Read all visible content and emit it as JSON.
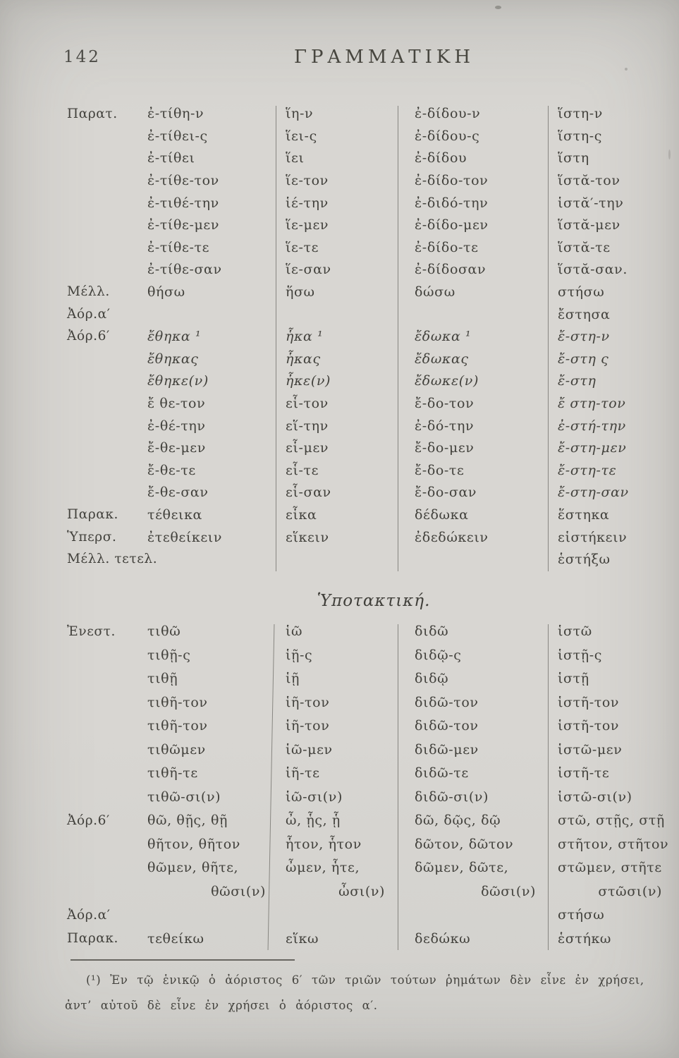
{
  "page": {
    "number": "142",
    "title": "ΓΡΑΜΜΑΤΙΚΗ"
  },
  "section_heading": "Ὑποτακτική.",
  "indicative_table": {
    "rows": [
      {
        "label": "Παρατ.",
        "cells": [
          "ἐ-τίθη-ν",
          "ἵη-ν",
          "ἐ-δίδου-ν",
          "ἵστη-ν"
        ],
        "italic": "none"
      },
      {
        "label": "",
        "cells": [
          "ἐ-τίθει-ς",
          "ἵει-ς",
          "ἐ-δίδου-ς",
          "ἵστη-ς"
        ],
        "italic": "none"
      },
      {
        "label": "",
        "cells": [
          "ἐ-τίθει",
          "ἵει",
          "ἐ-δίδου",
          "ἵστη"
        ],
        "italic": "none"
      },
      {
        "label": "",
        "cells": [
          "ἐ-τίθε-τον",
          "ἵε-τον",
          "ἐ-δίδο-τον",
          "ἵστᾰ-τον"
        ],
        "italic": "none"
      },
      {
        "label": "",
        "cells": [
          "ἐ-τιθέ-την",
          "ἱέ-την",
          "ἐ-διδό-την",
          "ἱστᾰ′-την"
        ],
        "italic": "none"
      },
      {
        "label": "",
        "cells": [
          "ἐ-τίθε-μεν",
          "ἵε-μεν",
          "ἐ-δίδο-μεν",
          "ἵστᾰ-μεν"
        ],
        "italic": "none"
      },
      {
        "label": "",
        "cells": [
          "ἐ-τίθε-τε",
          "ἵε-τε",
          "ἐ-δίδο-τε",
          "ἵστᾰ-τε"
        ],
        "italic": "none"
      },
      {
        "label": "",
        "cells": [
          "ἐ-τίθε-σαν",
          "ἵε-σαν",
          "ἐ-δίδοσαν",
          "ἵστᾰ-σαν."
        ],
        "italic": "none"
      },
      {
        "label": "Μέλλ.",
        "cells": [
          "θήσω",
          "ἥσω",
          "δώσω",
          "στήσω"
        ],
        "italic": "none"
      },
      {
        "label": "Ἀόρ.α′",
        "cells": [
          "",
          "",
          "",
          "ἔστησα"
        ],
        "italic": "none"
      },
      {
        "label": "Ἀόρ.6′",
        "cells": [
          "ἔθηκα ¹",
          "ἧκα ¹",
          "ἔδωκα ¹",
          "ἔ-στη-ν"
        ],
        "italic": "all"
      },
      {
        "label": "",
        "cells": [
          "ἔθηκας",
          "ἧκας",
          "ἔδωκας",
          "ἔ-στη ς"
        ],
        "italic": "all"
      },
      {
        "label": "",
        "cells": [
          "ἔθηκε(ν)",
          "ἧκε(ν)",
          "ἔδωκε(ν)",
          "ἔ-στη"
        ],
        "italic": "all"
      },
      {
        "label": "",
        "cells": [
          "ἔ θε-τον",
          "εἷ-τον",
          "ἔ-δο-τον",
          "ἔ στη-τον"
        ],
        "italic": "last"
      },
      {
        "label": "",
        "cells": [
          "ἐ-θέ-την",
          "εἵ-την",
          "ἐ-δό-την",
          "ἐ-στή-την"
        ],
        "italic": "last"
      },
      {
        "label": "",
        "cells": [
          "ἔ-θε-μεν",
          "εἷ-μεν",
          "ἔ-δο-μεν",
          "ἔ-στη-μεν"
        ],
        "italic": "last"
      },
      {
        "label": "",
        "cells": [
          "ἔ-θε-τε",
          "εἷ-τε",
          "ἔ-δο-τε",
          "ἔ-στη-τε"
        ],
        "italic": "last"
      },
      {
        "label": "",
        "cells": [
          "ἔ-θε-σαν",
          "εἷ-σαν",
          "ἔ-δο-σαν",
          "ἔ-στη-σαν"
        ],
        "italic": "last"
      },
      {
        "label": "Παρακ.",
        "cells": [
          "τέθεικα",
          "εἷκα",
          "δέδωκα",
          "ἕστηκα"
        ],
        "italic": "none"
      },
      {
        "label": "Ὑπερσ.",
        "cells": [
          "ἐτεθείκειν",
          "εἵκειν",
          "ἐδεδώκειν",
          "εἱστήκειν"
        ],
        "italic": "none"
      },
      {
        "label": "Μέλλ. τετελ.",
        "cells": [
          "",
          "",
          "",
          "ἑστήξω"
        ],
        "italic": "none"
      }
    ]
  },
  "subjunctive_table": {
    "rows": [
      {
        "label": "Ἐνεστ.",
        "cells": [
          "τιθῶ",
          "ἱῶ",
          "διδῶ",
          "ἱστῶ"
        ],
        "italic": "none"
      },
      {
        "label": "",
        "cells": [
          "τιθῇ-ς",
          "ἱῇ-ς",
          "διδῷ-ς",
          "ἱστῇ-ς"
        ],
        "italic": "none"
      },
      {
        "label": "",
        "cells": [
          "τιθῇ",
          "ἱῇ",
          "διδῷ",
          "ἱστῇ"
        ],
        "italic": "none"
      },
      {
        "label": "",
        "cells": [
          "τιθῆ-τον",
          "ἱῆ-τον",
          "διδῶ-τον",
          "ἱστῆ-τον"
        ],
        "italic": "none"
      },
      {
        "label": "",
        "cells": [
          "τιθῆ-τον",
          "ἱῆ-τον",
          "διδῶ-τον",
          "ἱστῆ-τον"
        ],
        "italic": "none"
      },
      {
        "label": "",
        "cells": [
          "τιθῶμεν",
          "ἱῶ-μεν",
          "διδῶ-μεν",
          "ἱστῶ-μεν"
        ],
        "italic": "none"
      },
      {
        "label": "",
        "cells": [
          "τιθῆ-τε",
          "ἱῆ-τε",
          "διδῶ-τε",
          "ἱστῆ-τε"
        ],
        "italic": "none"
      },
      {
        "label": "",
        "cells": [
          "τιθῶ-σι(ν)",
          "ἱῶ-σι(ν)",
          "διδῶ-σι(ν)",
          "ἱστῶ-σι(ν)"
        ],
        "italic": "none"
      },
      {
        "label": "Ἀόρ.6′",
        "cells": [
          "θῶ, θῇς, θῇ",
          "ὦ, ᾗς, ᾗ",
          "δῶ, δῷς, δῷ",
          "στῶ, στῇς, στῇ"
        ],
        "italic": "none"
      },
      {
        "label": "",
        "cells": [
          "θῆτον, θῆτον",
          "ἧτον, ἧτον",
          "δῶτον, δῶτον",
          "στῆτον, στῆτον"
        ],
        "italic": "none"
      },
      {
        "label": "",
        "cells": [
          "θῶμεν, θῆτε,",
          "ὦμεν, ἧτε,",
          "δῶμεν, δῶτε,",
          "στῶμεν, στῆτε"
        ],
        "italic": "none"
      },
      {
        "label": "",
        "cells": [
          "θῶσι(ν)",
          "ὦσι(ν)",
          "δῶσι(ν)",
          "στῶσι(ν)"
        ],
        "italic": "none",
        "align": "right"
      },
      {
        "label": "Ἀόρ.α′",
        "cells": [
          "",
          "",
          "",
          "στήσω"
        ],
        "italic": "none"
      },
      {
        "label": "Παρακ.",
        "cells": [
          "τεθείκω",
          "εἵκω",
          "δεδώκω",
          "ἑστήκω"
        ],
        "italic": "none"
      }
    ]
  },
  "footnote": {
    "lines": [
      "(¹) Ἐν τῷ ἑνικῷ ὁ ἀόριστος 6′ τῶν τριῶν τούτων ῥημάτων δὲν εἶνε ἐν χρήσει,",
      "ἀντ’ αὐτοῦ δὲ εἶνε ἐν χρήσει ὁ ἀόριστος α′."
    ]
  },
  "colors": {
    "paper": "#d8d6d2",
    "ink": "#42413c",
    "rule": "#6a6862"
  }
}
